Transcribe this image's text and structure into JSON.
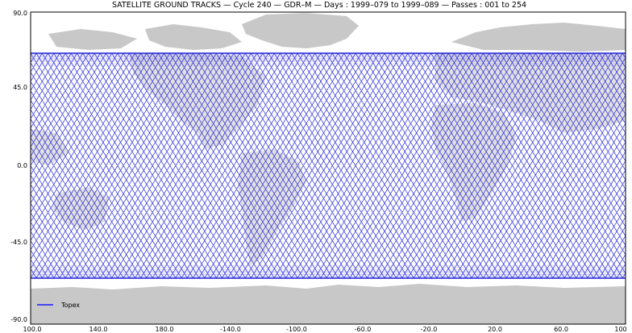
{
  "title": "SATELLITE GROUND TRACKS — Cycle 240 — GDR–M — Days : 1999–079 to 1999–089 — Passes : 001 to 254",
  "y_ticks": [
    "90.0",
    "45.0",
    "0.0",
    "-45.0",
    "-90.0"
  ],
  "x_ticks": [
    "100.0",
    "140.0",
    "180.0",
    "-140.0",
    "-100.0",
    "-60.0",
    "-20.0",
    "20.0",
    "60.0",
    "100"
  ],
  "legend": {
    "label": "Topex",
    "color": "#1a1aff"
  },
  "colors": {
    "track": "#1f1fd9",
    "land": "#c8c8c8",
    "ocean": "#ffffff"
  },
  "track_lat_limit": 66
}
